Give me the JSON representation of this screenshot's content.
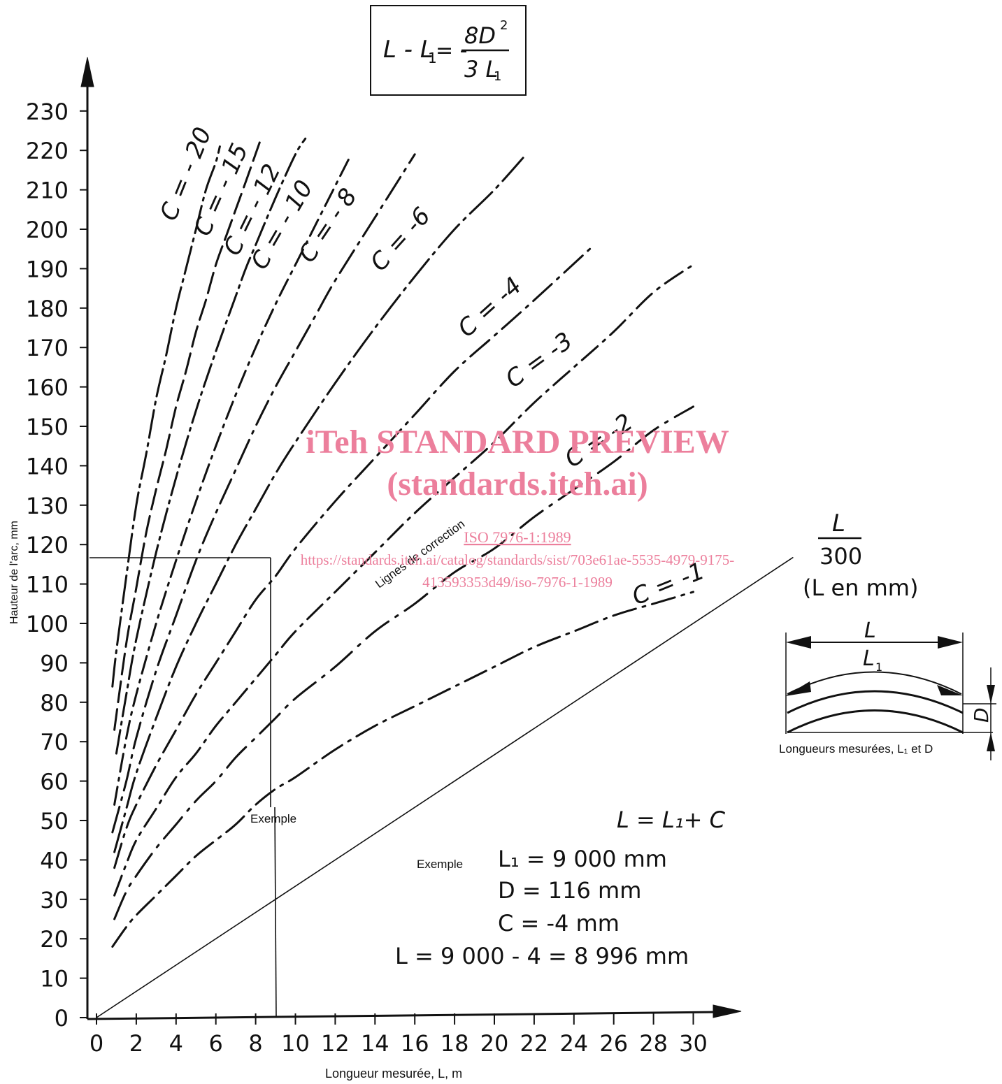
{
  "formula": {
    "lhs": "L - L",
    "lhs_sub": "1",
    "eq": "= -",
    "num": "8D",
    "num_sup": "2",
    "den": "3 L",
    "den_sub": "1"
  },
  "watermark": {
    "line1": "iTeh STANDARD PREVIEW",
    "line2": "(standards.iteh.ai)",
    "line3": "ISO 7976-1:1989",
    "line4": "https://standards.iteh.ai/catalog/standards/sist/703e61ae-5535-4979-9175-",
    "line5": "413593353d49/iso-7976-1-1989"
  },
  "ratio_label": {
    "num": "L",
    "den": "300",
    "unit": "(L en mm)"
  },
  "inset": {
    "label_L": "L",
    "label_L1": "L",
    "label_L1_sub": "1",
    "label_D": "D",
    "caption": "Longueurs mesurées, L₁ et D"
  },
  "example_note": {
    "exemple_line_label": "Exemple",
    "formula": "L = L₁+ C",
    "label": "Exemple",
    "rows": [
      "L₁ = 9  000 mm",
      "D =     116 mm",
      "C  =   -4 mm",
      "L = 9  000 - 4 = 8 996 mm"
    ]
  },
  "chart_data": {
    "type": "line",
    "xlabel": "Longueur mesurée, L, m",
    "ylabel": "Hauteur de l'arc, mm",
    "xlim": [
      0,
      30
    ],
    "ylim": [
      0,
      230
    ],
    "xticks": [
      0,
      2,
      4,
      6,
      8,
      10,
      12,
      14,
      16,
      18,
      20,
      22,
      24,
      26,
      28,
      30
    ],
    "yticks": [
      0,
      10,
      20,
      30,
      40,
      50,
      60,
      70,
      80,
      90,
      100,
      110,
      120,
      130,
      140,
      150,
      160,
      170,
      180,
      190,
      200,
      210,
      220,
      230
    ],
    "correction_lines_label": "Lignes de correction",
    "series": [
      {
        "name": "C = - 20",
        "label_text": "C = - 20",
        "x": [
          0.8,
          1.0,
          1.5,
          2.0,
          2.5,
          3.0,
          3.5,
          4.0,
          4.5,
          5.0,
          5.5,
          6.0,
          6.2
        ],
        "y": [
          84,
          93,
          112,
          130,
          143,
          157,
          168,
          180,
          190,
          200,
          210,
          217,
          221
        ]
      },
      {
        "name": "C = - 15",
        "label_text": "C = - 15",
        "x": [
          0.9,
          1.5,
          2.0,
          2.5,
          3.0,
          3.5,
          4.0,
          4.5,
          5.0,
          5.5,
          6.0,
          6.5,
          7.0,
          7.5,
          8.2
        ],
        "y": [
          73,
          95,
          109,
          123,
          134,
          144,
          155,
          164,
          174,
          182,
          191,
          198,
          205,
          212,
          222
        ]
      },
      {
        "name": "C = - 12",
        "label_text": "C = - 12",
        "x": [
          1.0,
          1.5,
          2.0,
          3.0,
          4.0,
          5.0,
          6.0,
          7.0,
          7.5,
          8.0,
          9.0,
          10.0,
          10.5
        ],
        "y": [
          67,
          82,
          96,
          118,
          137,
          154,
          169,
          183,
          190,
          196,
          208,
          219,
          223
        ]
      },
      {
        "name": "C = - 10",
        "label_text": "C = - 10",
        "x": [
          0.9,
          1.5,
          2.0,
          3.0,
          4.0,
          5.0,
          6.0,
          7.0,
          8.0,
          9.0,
          10.0,
          11.0,
          12.0,
          12.8
        ],
        "y": [
          54,
          71,
          82,
          100,
          116,
          131,
          145,
          158,
          170,
          181,
          191,
          201,
          211,
          219
        ]
      },
      {
        "name": "C = - 8",
        "label_text": "C = - 8",
        "x": [
          0.8,
          1.5,
          2.0,
          3.0,
          4.0,
          5.0,
          6.0,
          7.0,
          8.0,
          9.0,
          10.0,
          11.0,
          12.0,
          14.0,
          16.0
        ],
        "y": [
          47,
          60,
          71,
          88,
          102,
          116,
          128,
          139,
          150,
          160,
          169,
          178,
          187,
          203,
          219
        ]
      },
      {
        "name": "C = - 6",
        "label_text": "C = -6",
        "x": [
          0.9,
          1.5,
          2.0,
          3.0,
          4.0,
          5.0,
          6.0,
          7.0,
          8.0,
          9.0,
          10.0,
          12.0,
          14.0,
          16.0,
          18.0,
          20.0,
          21.6
        ],
        "y": [
          42,
          53,
          62,
          76,
          89,
          100,
          110,
          120,
          129,
          138,
          146,
          161,
          175,
          188,
          200,
          210,
          219
        ]
      },
      {
        "name": "C = - 4",
        "label_text": "C = -4",
        "x": [
          0.9,
          1.5,
          2.0,
          3.0,
          4.0,
          5.0,
          6.0,
          7.0,
          8.0,
          9.0,
          10.0,
          12.0,
          14.0,
          16.0,
          18.0,
          20.0,
          22.0,
          24.8
        ],
        "y": [
          38,
          48,
          54,
          64,
          73,
          82,
          90,
          98,
          106,
          112,
          119,
          131,
          142,
          153,
          164,
          173,
          182,
          195
        ]
      },
      {
        "name": "C = - 3",
        "label_text": "C = -3",
        "x": [
          0.9,
          1.5,
          2.0,
          3.0,
          4.0,
          5.0,
          6.0,
          7.0,
          8.0,
          9.0,
          10.0,
          12.0,
          14.0,
          16.0,
          18.0,
          20.0,
          22.0,
          24.0,
          26.0,
          28.0,
          30.0
        ],
        "y": [
          31,
          39,
          45,
          53,
          61,
          67,
          74,
          80,
          86,
          92,
          98,
          108,
          118,
          128,
          137,
          146,
          156,
          165,
          174,
          184,
          191
        ]
      },
      {
        "name": "C = - 2",
        "label_text": "C = -2",
        "x": [
          0.9,
          1.5,
          2.0,
          3.0,
          4.0,
          5.0,
          6.0,
          7.0,
          8.0,
          9.0,
          10.0,
          12.0,
          14.0,
          16.0,
          18.0,
          20.0,
          22.0,
          24.0,
          26.0,
          28.0,
          30.0
        ],
        "y": [
          25,
          32,
          36,
          43,
          49,
          55,
          60,
          66,
          71,
          76,
          81,
          89,
          98,
          105,
          113,
          119,
          127,
          134,
          141,
          149,
          155
        ]
      },
      {
        "name": "C = - 1",
        "label_text": "C = -1",
        "x": [
          0.8,
          1.5,
          2.0,
          3.0,
          4.0,
          5.0,
          6.0,
          7.0,
          8.0,
          9.0,
          10.0,
          12.0,
          14.0,
          16.0,
          18.0,
          20.0,
          22.0,
          24.0,
          26.0,
          28.0,
          30.0
        ],
        "y": [
          18,
          23,
          26,
          31,
          36,
          41,
          45,
          49,
          54,
          58,
          61,
          68,
          74,
          79,
          84,
          89,
          94,
          98,
          102,
          105,
          108
        ]
      },
      {
        "name": "L/300",
        "x": [
          0,
          35
        ],
        "y": [
          0,
          116.7
        ]
      }
    ],
    "example": {
      "L1_m": 9,
      "D_mm": 116
    }
  }
}
